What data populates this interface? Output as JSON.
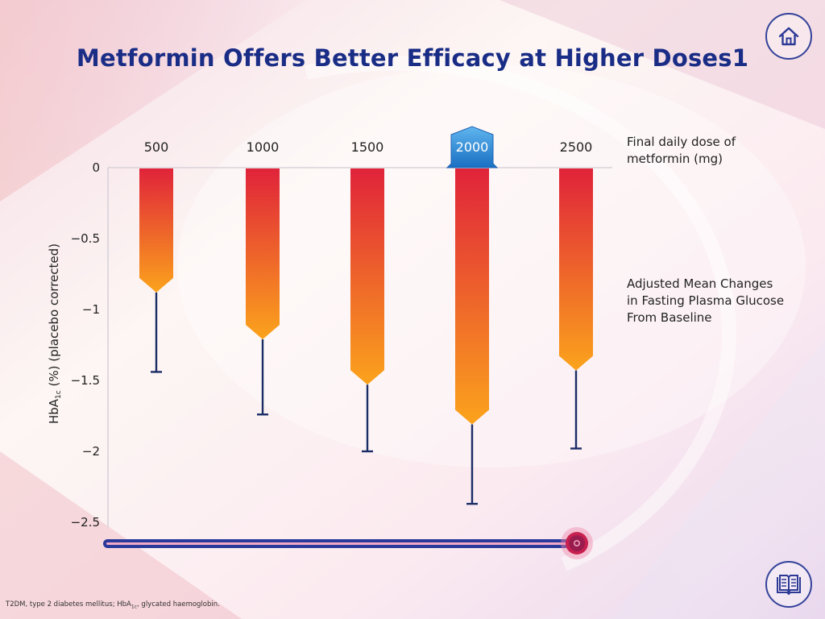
{
  "page": {
    "title": "Metformin Offers Better Efficacy at Higher Doses1",
    "dose_note": [
      "Final daily dose of",
      "metformin (mg)"
    ],
    "adjusted_note": [
      "Adjusted Mean Changes",
      "in Fasting Plasma Glucose",
      "From Baseline"
    ],
    "y_label_main": "HbA",
    "y_label_sub": "1c",
    "y_label_rest": " (%) (placebo corrected)",
    "footnote_a": "T2DM, type 2 diabetes mellitus; HbA",
    "footnote_sub": "1c",
    "footnote_b": ", glycated haemoglobin."
  },
  "colors": {
    "title": "#1a2d86",
    "bar_top": "#e0233a",
    "bar_bottom": "#fba31c",
    "error_bar": "#1a2d66",
    "highlight": "#2a8fd8",
    "slider_track": "#2a3a9a",
    "slider_knob": "#d8245a"
  },
  "icons": {
    "home": "home-icon",
    "references": "book-icon"
  },
  "chart_data": {
    "type": "bar",
    "categories": [
      "500",
      "1000",
      "1500",
      "2000",
      "2500"
    ],
    "values": [
      -0.88,
      -1.21,
      -1.53,
      -1.81,
      -1.43
    ],
    "error_low": [
      -1.44,
      -1.74,
      -2.0,
      -2.37,
      -1.98
    ],
    "highlighted_category": "2000",
    "xlabel": "Final daily dose of metformin (mg)",
    "ylabel": "HbA1c (%) (placebo corrected)",
    "ylim": [
      -2.5,
      0
    ],
    "yticks": [
      0,
      -0.5,
      -1,
      -1.5,
      -2,
      -2.5
    ],
    "ytick_labels": [
      "0",
      "−0.5",
      "−1",
      "−1.5",
      "−2",
      "−2.5"
    ],
    "grid": false
  },
  "slider": {
    "value": 1.0
  }
}
